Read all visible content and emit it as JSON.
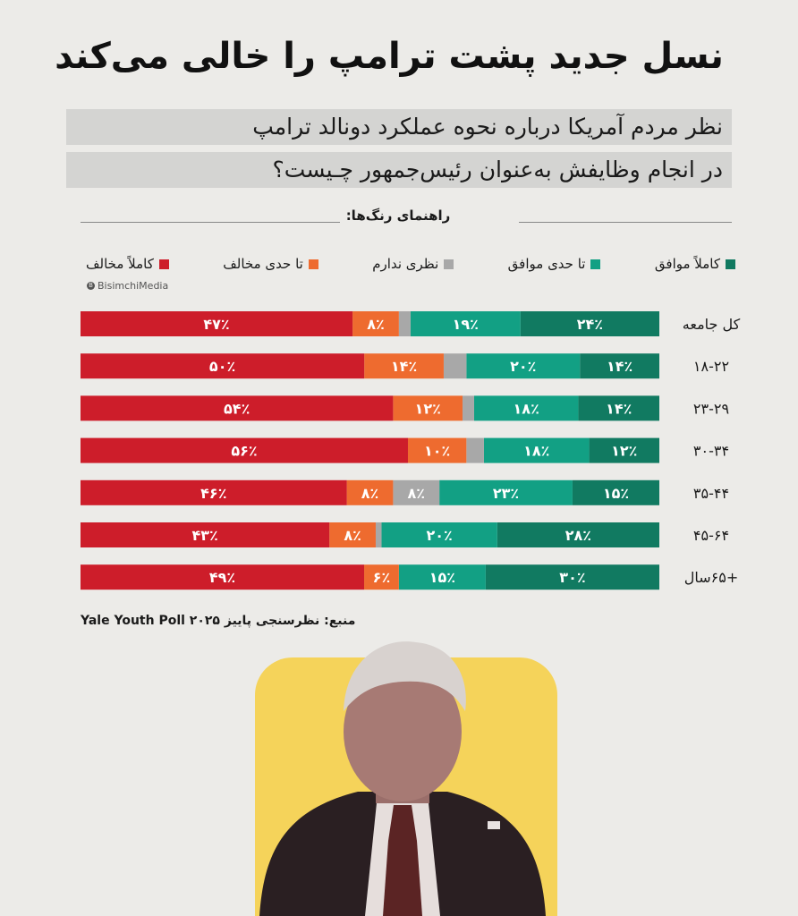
{
  "title": "نسل جدید پشت ترامپ را خالی می‌کند",
  "subtitle_line1": "نظر  مردم آمریکا درباره نحوه عملکرد دونالد ترامپ",
  "subtitle_line2": "در انجام وظایفش به‌عنوان رئیس‌جمهور چـیست؟",
  "legend_title": "راهنمای رنگ‌ها:",
  "brand": "BisimchiMedia",
  "source": "منبع: نظرسنجی پاییز ۲۰۲۵ Yale Youth Poll",
  "colors": {
    "strongly_agree": "#117a61",
    "somewhat_agree": "#12a084",
    "no_opinion": "#a8a8a8",
    "somewhat_disagree": "#ee6b2f",
    "strongly_disagree": "#cd1d2a",
    "highlight": "#f5d35a"
  },
  "chart_data": {
    "type": "bar",
    "orientation": "horizontal-stacked-100",
    "categories": [
      "کل جامعه",
      "۱۸-۲۲",
      "۲۳-۲۹",
      "۳۰-۳۴",
      "۳۵-۴۴",
      "۴۵-۶۴",
      "+۶۵سال"
    ],
    "series": [
      {
        "name": "کاملاً موافق",
        "color": "#117a61",
        "values": [
          24,
          14,
          14,
          12,
          15,
          28,
          30
        ],
        "labels": [
          "۲۴٪",
          "۱۴٪",
          "۱۴٪",
          "۱۲٪",
          "۱۵٪",
          "۲۸٪",
          "۳۰٪"
        ]
      },
      {
        "name": "تا حدی موافق",
        "color": "#12a084",
        "values": [
          19,
          20,
          18,
          18,
          23,
          20,
          15
        ],
        "labels": [
          "۱۹٪",
          "۲۰٪",
          "۱۸٪",
          "۱۸٪",
          "۲۳٪",
          "۲۰٪",
          "۱۵٪"
        ]
      },
      {
        "name": "نظری ندارم",
        "color": "#a8a8a8",
        "values": [
          2,
          4,
          2,
          3,
          8,
          1,
          0
        ],
        "labels": [
          "",
          "",
          "",
          "",
          "۸٪",
          "",
          ""
        ]
      },
      {
        "name": "تا حدی مخالف",
        "color": "#ee6b2f",
        "values": [
          8,
          14,
          12,
          10,
          8,
          8,
          6
        ],
        "labels": [
          "۸٪",
          "۱۴٪",
          "۱۲٪",
          "۱۰٪",
          "۸٪",
          "۸٪",
          "۶٪"
        ]
      },
      {
        "name": "کاملاً مخالف",
        "color": "#cd1d2a",
        "values": [
          47,
          50,
          54,
          56,
          46,
          43,
          49
        ],
        "labels": [
          "۴۷٪",
          "۵۰٪",
          "۵۴٪",
          "۵۶٪",
          "۴۶٪",
          "۴۳٪",
          "۴۹٪"
        ]
      }
    ],
    "xlim": [
      0,
      100
    ],
    "legend": "top",
    "grid": false
  }
}
